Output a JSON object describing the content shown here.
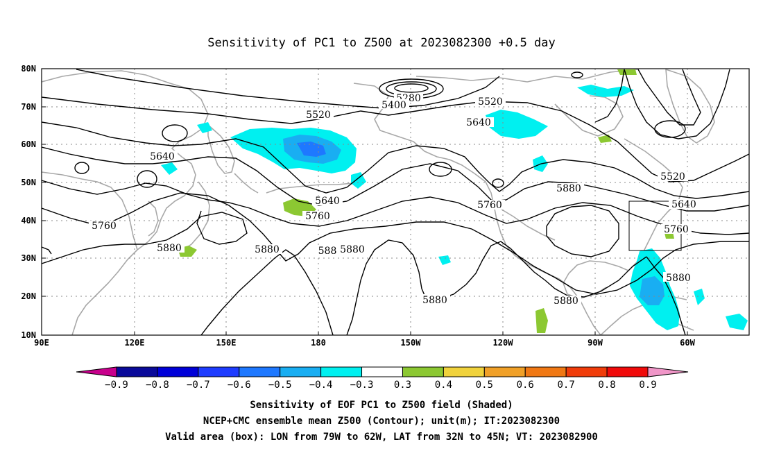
{
  "title": "Sensitivity of PC1 to Z500 at 2023082300 +0.5 day",
  "map": {
    "lon_ticks": [
      "90E",
      "120E",
      "150E",
      "180",
      "150W",
      "120W",
      "90W",
      "60W"
    ],
    "lat_ticks": [
      "80N",
      "70N",
      "60N",
      "50N",
      "40N",
      "30N",
      "20N",
      "10N"
    ],
    "contour_labels": [
      "5280",
      "5400",
      "5520",
      "5520",
      "5640",
      "5640",
      "5640",
      "5640",
      "5520",
      "5640",
      "5760",
      "5760",
      "5760",
      "5880",
      "5760",
      "5880",
      "5880",
      "588",
      "5880",
      "5880",
      "5880",
      "5880",
      "5880"
    ],
    "valid_box": {
      "lon_min": "79W",
      "lon_max": "62W",
      "lat_min": "32N",
      "lat_max": "45N"
    }
  },
  "colorbar": {
    "labels": [
      "−0.9",
      "−0.8",
      "−0.7",
      "−0.6",
      "−0.5",
      "−0.4",
      "−0.3",
      "0.3",
      "0.4",
      "0.5",
      "0.6",
      "0.7",
      "0.8",
      "0.9"
    ],
    "colors": [
      "#c8008c",
      "#0a0a9a",
      "#0000d8",
      "#1e3cff",
      "#1e78ff",
      "#19aef2",
      "#00f0f0",
      "#ffffff",
      "#8cc832",
      "#f0d23c",
      "#f0a028",
      "#f07814",
      "#f03c0a",
      "#f00a0a",
      "#f096c8"
    ]
  },
  "footer": {
    "line1": "Sensitivity of EOF PC1 to Z500 field (Shaded)",
    "line2": "NCEP+CMC ensemble mean Z500 (Contour); unit(m); IT:2023082300",
    "line3": "Valid area (box): LON from 79W to 62W, LAT from 32N to 45N; VT: 2023082900"
  }
}
